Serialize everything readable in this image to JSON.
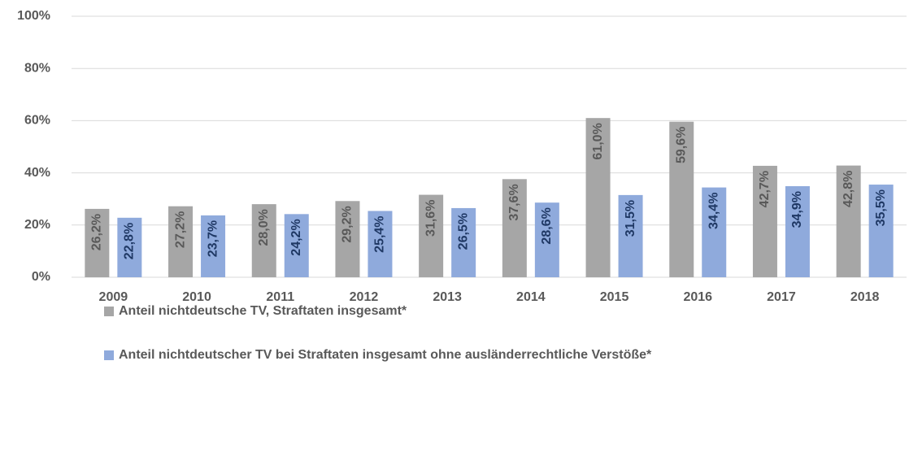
{
  "chart_data": {
    "type": "bar",
    "categories": [
      "2009",
      "2010",
      "2011",
      "2012",
      "2013",
      "2014",
      "2015",
      "2016",
      "2017",
      "2018"
    ],
    "series": [
      {
        "name": "Anteil nichtdeutsche TV, Straftaten insgesamt*",
        "color": "#a6a6a6",
        "label_color": "#595959",
        "values": [
          26.2,
          27.2,
          28.0,
          29.2,
          31.6,
          37.6,
          61.0,
          59.6,
          42.7,
          42.8
        ],
        "value_labels": [
          "26,2%",
          "27,2%",
          "28,0%",
          "29,2%",
          "31,6%",
          "37,6%",
          "61,0%",
          "59,6%",
          "42,7%",
          "42,8%"
        ]
      },
      {
        "name": "Anteil nichtdeutscher TV bei Straftaten insgesamt ohne ausländerrechtliche Verstöße*",
        "color": "#8faadc",
        "label_color": "#1f3864",
        "values": [
          22.8,
          23.7,
          24.2,
          25.4,
          26.5,
          28.6,
          31.5,
          34.4,
          34.9,
          35.5
        ],
        "value_labels": [
          "22,8%",
          "23,7%",
          "24,2%",
          "25,4%",
          "26,5%",
          "28,6%",
          "31,5%",
          "34,4%",
          "34,9%",
          "35,5%"
        ]
      }
    ],
    "ylim": [
      0,
      100
    ],
    "yticks": [
      {
        "value": 0,
        "label": "0%"
      },
      {
        "value": 20,
        "label": "20%"
      },
      {
        "value": 40,
        "label": "40%"
      },
      {
        "value": 60,
        "label": "60%"
      },
      {
        "value": 80,
        "label": "80%"
      },
      {
        "value": 100,
        "label": "100%"
      }
    ],
    "grid": true
  }
}
